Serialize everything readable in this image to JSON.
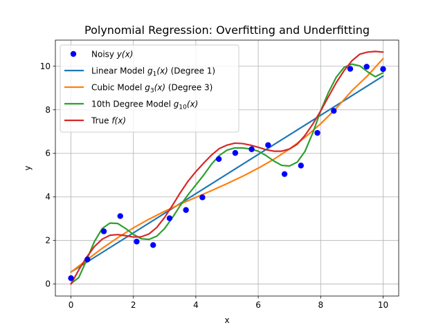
{
  "chart_data": {
    "type": "line",
    "title": "Polynomial Regression: Overfitting and Underfitting",
    "xlabel": "x",
    "ylabel": "y",
    "xlim": [
      -0.5,
      10.5
    ],
    "ylim": [
      -0.55,
      11.2
    ],
    "grid": true,
    "legend_position": "top-left",
    "x_ticks": [
      0,
      2,
      4,
      6,
      8,
      10
    ],
    "y_ticks": [
      0,
      2,
      4,
      6,
      8,
      10
    ],
    "x_tick_labels": [
      "0",
      "2",
      "4",
      "6",
      "8",
      "10"
    ],
    "y_tick_labels": [
      "0",
      "2",
      "4",
      "6",
      "8",
      "10"
    ],
    "legend": [
      {
        "text": "Noisy y(x)",
        "prefix": "Noisy ",
        "math": "y(x)",
        "suffix": ""
      },
      {
        "text": "Linear Model g1(x) (Degree 1)",
        "prefix": "Linear Model ",
        "math": "g",
        "sub": "1",
        "math2": "(x)",
        "suffix": " (Degree 1)"
      },
      {
        "text": "Cubic Model g3(x) (Degree 3)",
        "prefix": "Cubic Model ",
        "math": "g",
        "sub": "3",
        "math2": "(x)",
        "suffix": " (Degree 3)"
      },
      {
        "text": "10th Degree Model g10(x)",
        "prefix": "10th Degree Model ",
        "math": "g",
        "sub": "10",
        "math2": "(x)",
        "suffix": ""
      },
      {
        "text": "True f(x)",
        "prefix": "True ",
        "math": "f(x)",
        "suffix": ""
      }
    ],
    "scatter": {
      "name": "Noisy y(x)",
      "color": "#0000ff",
      "x": [
        0.0,
        0.526,
        1.053,
        1.579,
        2.105,
        2.632,
        3.158,
        3.684,
        4.211,
        4.737,
        5.263,
        5.789,
        6.316,
        6.842,
        7.368,
        7.895,
        8.421,
        8.947,
        9.474,
        10.0
      ],
      "y": [
        0.27,
        1.13,
        2.42,
        3.12,
        1.95,
        1.79,
        3.02,
        3.4,
        3.98,
        5.74,
        6.02,
        6.19,
        6.38,
        5.05,
        5.44,
        6.94,
        7.95,
        9.88,
        9.98,
        9.87
      ]
    },
    "series": [
      {
        "name": "Linear Model g1(x) (Degree 1)",
        "color": "#1f77b4",
        "x": [
          0,
          10
        ],
        "y": [
          0.55,
          9.55
        ]
      },
      {
        "name": "Cubic Model g3(x) (Degree 3)",
        "color": "#ff7f0e",
        "x": [
          0,
          0.5,
          1,
          1.5,
          2,
          2.5,
          3,
          3.5,
          4,
          4.5,
          5,
          5.5,
          6,
          6.5,
          7,
          7.5,
          8,
          8.5,
          9,
          9.5,
          10
        ],
        "y": [
          0.55,
          1.1,
          1.64,
          2.13,
          2.58,
          2.98,
          3.34,
          3.67,
          3.98,
          4.29,
          4.61,
          4.95,
          5.32,
          5.73,
          6.2,
          6.74,
          7.36,
          8.07,
          8.88,
          9.56,
          10.35
        ]
      },
      {
        "name": "10th Degree Model g10(x)",
        "color": "#2ca02c",
        "x": [
          0,
          0.25,
          0.5,
          0.75,
          1,
          1.25,
          1.5,
          1.75,
          2,
          2.25,
          2.5,
          2.75,
          3,
          3.25,
          3.5,
          3.75,
          4,
          4.25,
          4.5,
          4.75,
          5,
          5.25,
          5.5,
          5.75,
          6,
          6.25,
          6.5,
          6.75,
          7,
          7.25,
          7.5,
          7.75,
          8,
          8.25,
          8.5,
          8.75,
          9,
          9.25,
          9.5,
          9.75,
          10
        ],
        "y": [
          0.02,
          0.3,
          1.1,
          1.95,
          2.55,
          2.8,
          2.78,
          2.55,
          2.28,
          2.08,
          2.05,
          2.2,
          2.55,
          3.05,
          3.6,
          4.1,
          4.55,
          5.0,
          5.5,
          5.9,
          6.15,
          6.25,
          6.25,
          6.2,
          6.1,
          5.9,
          5.65,
          5.45,
          5.42,
          5.6,
          6.1,
          6.95,
          7.95,
          8.8,
          9.5,
          9.95,
          10.1,
          10.02,
          9.75,
          9.52,
          9.7
        ]
      },
      {
        "name": "True f(x)",
        "color": "#d62728",
        "x": [
          0,
          0.25,
          0.5,
          0.75,
          1,
          1.25,
          1.5,
          1.75,
          2,
          2.25,
          2.5,
          2.75,
          3,
          3.25,
          3.5,
          3.75,
          4,
          4.25,
          4.5,
          4.75,
          5,
          5.25,
          5.5,
          5.75,
          6,
          6.25,
          6.5,
          6.75,
          7,
          7.25,
          7.5,
          7.75,
          8,
          8.25,
          8.5,
          8.75,
          9,
          9.25,
          9.5,
          9.75,
          10
        ],
        "y": [
          0.0,
          0.65,
          1.23,
          1.72,
          2.06,
          2.24,
          2.27,
          2.22,
          2.16,
          2.17,
          2.3,
          2.6,
          3.06,
          3.61,
          4.19,
          4.72,
          5.16,
          5.55,
          5.92,
          6.22,
          6.38,
          6.47,
          6.45,
          6.38,
          6.28,
          6.17,
          6.1,
          6.1,
          6.2,
          6.42,
          6.83,
          7.35,
          7.95,
          8.6,
          9.25,
          9.8,
          10.25,
          10.55,
          10.65,
          10.68,
          10.65
        ]
      }
    ]
  }
}
